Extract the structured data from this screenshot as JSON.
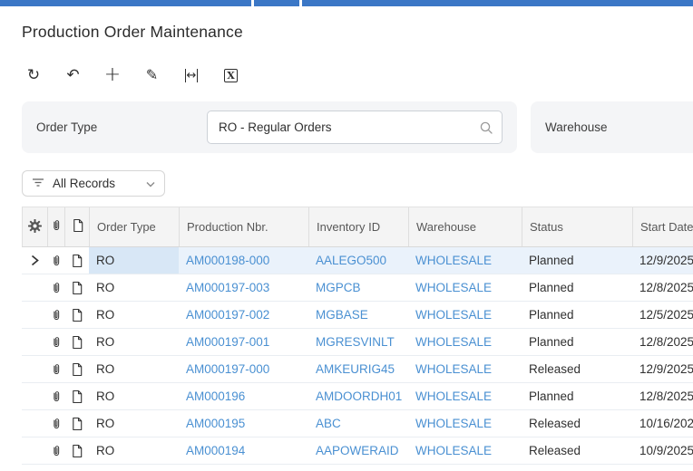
{
  "page": {
    "title": "Production Order Maintenance"
  },
  "toolbar": {
    "buttons": [
      {
        "icon": "refresh-icon"
      },
      {
        "icon": "undo-icon"
      },
      {
        "icon": "add-icon"
      },
      {
        "icon": "edit-icon"
      },
      {
        "icon": "fit-width-icon"
      },
      {
        "icon": "export-excel-icon"
      }
    ]
  },
  "filters": {
    "order_type": {
      "label": "Order Type",
      "value": "RO - Regular Orders"
    },
    "warehouse": {
      "label": "Warehouse",
      "value": ""
    }
  },
  "records_filter": {
    "label": "All Records"
  },
  "table": {
    "columns": {
      "order_type": "Order Type",
      "production_nbr": "Production Nbr.",
      "inventory_id": "Inventory ID",
      "warehouse": "Warehouse",
      "status": "Status",
      "start_date": "Start Date"
    },
    "rows": [
      {
        "selected": true,
        "order_type": "RO",
        "production_nbr": "AM000198-000",
        "inventory_id": "AALEGO500",
        "warehouse": "WHOLESALE",
        "status": "Planned",
        "start_date": "12/9/2025"
      },
      {
        "selected": false,
        "order_type": "RO",
        "production_nbr": "AM000197-003",
        "inventory_id": "MGPCB",
        "warehouse": "WHOLESALE",
        "status": "Planned",
        "start_date": "12/8/2025"
      },
      {
        "selected": false,
        "order_type": "RO",
        "production_nbr": "AM000197-002",
        "inventory_id": "MGBASE",
        "warehouse": "WHOLESALE",
        "status": "Planned",
        "start_date": "12/5/2025"
      },
      {
        "selected": false,
        "order_type": "RO",
        "production_nbr": "AM000197-001",
        "inventory_id": "MGRESVINLT",
        "warehouse": "WHOLESALE",
        "status": "Planned",
        "start_date": "12/8/2025"
      },
      {
        "selected": false,
        "order_type": "RO",
        "production_nbr": "AM000197-000",
        "inventory_id": "AMKEURIG45",
        "warehouse": "WHOLESALE",
        "status": "Released",
        "start_date": "12/9/2025"
      },
      {
        "selected": false,
        "order_type": "RO",
        "production_nbr": "AM000196",
        "inventory_id": "AMDOORDH01",
        "warehouse": "WHOLESALE",
        "status": "Planned",
        "start_date": "12/8/2025"
      },
      {
        "selected": false,
        "order_type": "RO",
        "production_nbr": "AM000195",
        "inventory_id": "ABC",
        "warehouse": "WHOLESALE",
        "status": "Released",
        "start_date": "10/16/2025"
      },
      {
        "selected": false,
        "order_type": "RO",
        "production_nbr": "AM000194",
        "inventory_id": "AAPOWERAID",
        "warehouse": "WHOLESALE",
        "status": "Released",
        "start_date": "10/9/2025"
      }
    ]
  },
  "colors": {
    "accent": "#3b77c6",
    "link": "#4a90d2",
    "selected_row": "#eaf2fb",
    "selected_cell": "#d8e7f6"
  }
}
